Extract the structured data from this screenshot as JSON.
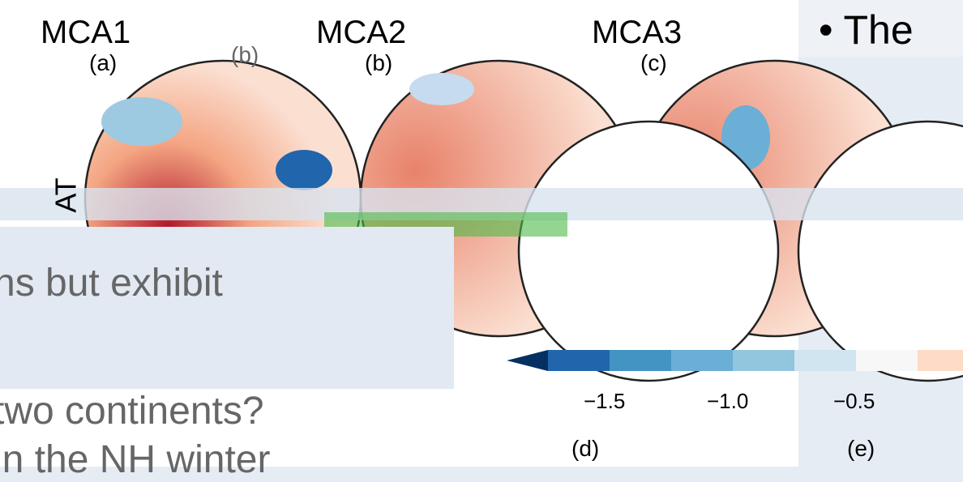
{
  "slide": {
    "bullet": "The",
    "body_lines": [
      "ns but exhibit",
      "two continents?",
      "in the NH winter"
    ]
  },
  "figure": {
    "columns": [
      "MCA1",
      "MCA2",
      "MCA3"
    ],
    "panel_labels": [
      "(a)",
      "(b)",
      "(b)",
      "(c)",
      "(d)",
      "(e)"
    ],
    "side_label": "AT",
    "colorbar_ticks": [
      "−1.5",
      "−1.0",
      "−0.5"
    ]
  }
}
